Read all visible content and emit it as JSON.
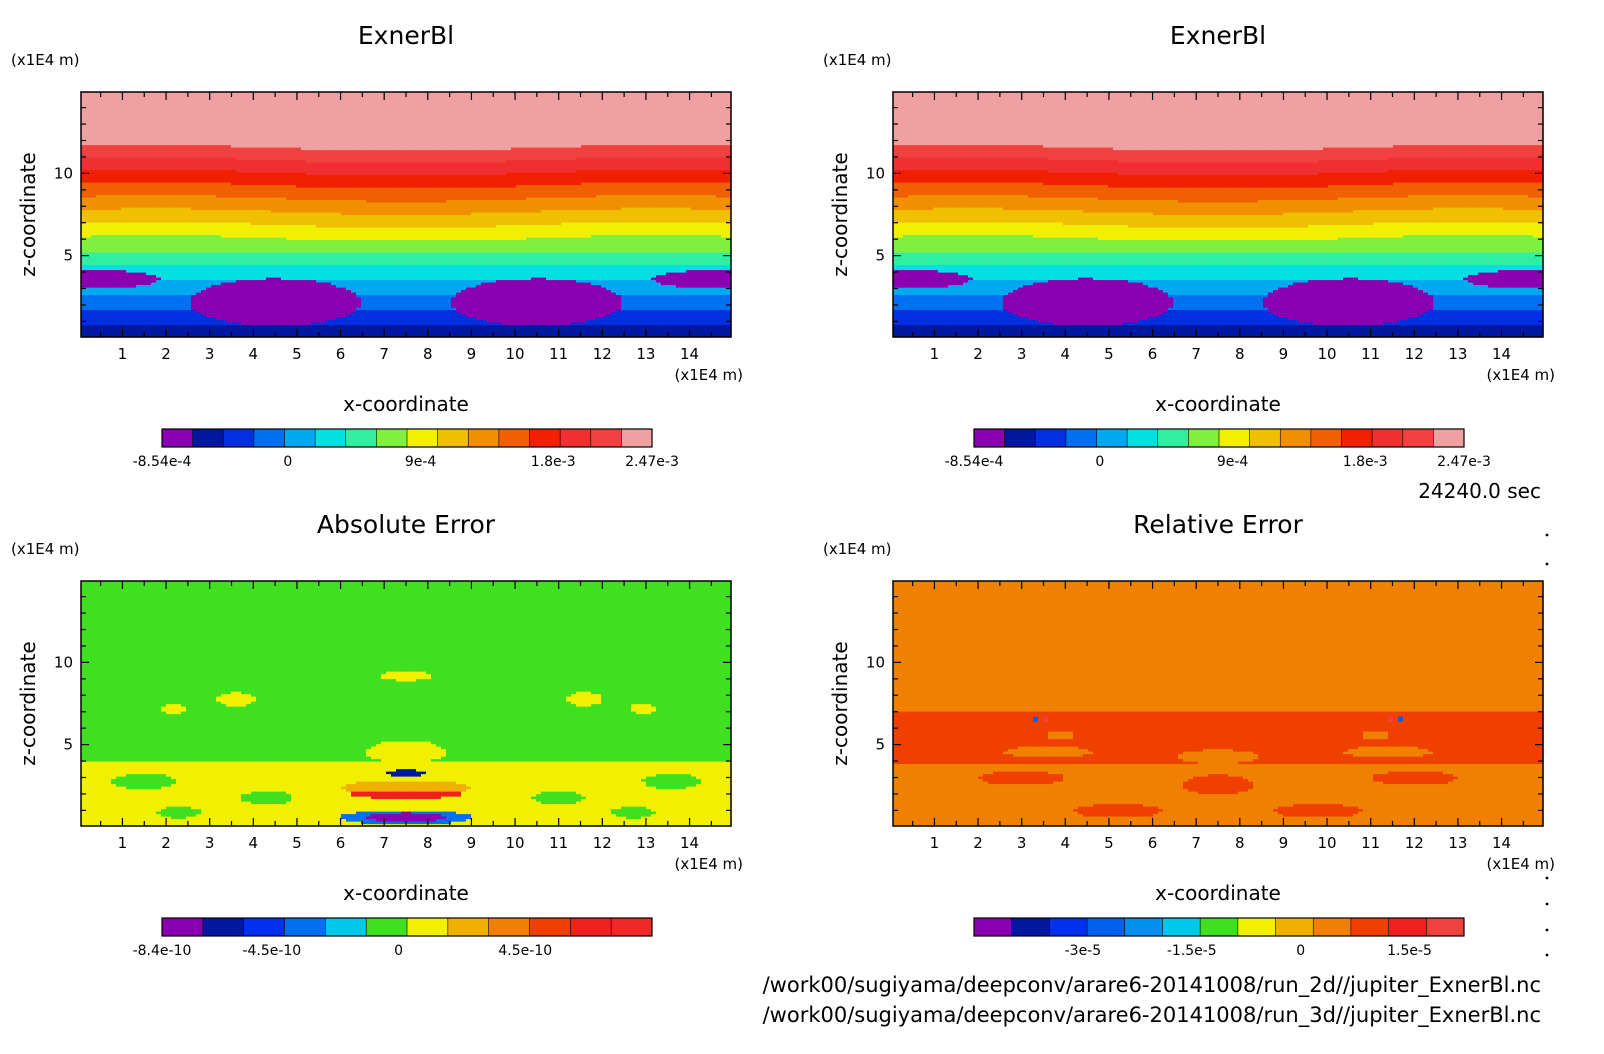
{
  "time_label": "24240.0 sec",
  "file_paths": [
    "/work00/sugiyama/deepconv/arare6-20141008/run_2d//jupiter_ExnerBl.nc",
    "/work00/sugiyama/deepconv/arare6-20141008/run_3d//jupiter_ExnerBl.nc"
  ],
  "chart_data": [
    {
      "type": "heatmap",
      "title": "ExnerBl",
      "xlabel": "x-coordinate",
      "ylabel": "z-coordinate",
      "x_unit": "(x1E4 m)",
      "y_unit": "(x1E4 m)",
      "x_ticks": [
        1,
        2,
        3,
        4,
        5,
        6,
        7,
        8,
        9,
        10,
        11,
        12,
        13,
        14
      ],
      "y_ticks": [
        5,
        10
      ],
      "xlim": [
        0.05,
        14.95
      ],
      "ylim": [
        0.05,
        14.95
      ],
      "colorbar": {
        "range": [
          -0.000854,
          0.00247
        ],
        "labels": [
          "-8.54e-4",
          "0",
          "9e-4",
          "1.8e-3",
          "2.47e-3"
        ],
        "label_values": [
          -0.000854,
          0,
          0.0009,
          0.0018,
          0.00247
        ],
        "colors": [
          "#8a00b0",
          "#0018a0",
          "#0030e0",
          "#0070f0",
          "#00a8f0",
          "#00e0e0",
          "#30f0a0",
          "#80f040",
          "#f0f000",
          "#f0c000",
          "#f09000",
          "#f06000",
          "#f02000",
          "#f03030",
          "#f04040",
          "#f0a0a0"
        ]
      },
      "field": "ExnerBl"
    },
    {
      "type": "heatmap",
      "title": "ExnerBl",
      "xlabel": "x-coordinate",
      "ylabel": "z-coordinate",
      "x_unit": "(x1E4 m)",
      "y_unit": "(x1E4 m)",
      "x_ticks": [
        1,
        2,
        3,
        4,
        5,
        6,
        7,
        8,
        9,
        10,
        11,
        12,
        13,
        14
      ],
      "y_ticks": [
        5,
        10
      ],
      "xlim": [
        0.05,
        14.95
      ],
      "ylim": [
        0.05,
        14.95
      ],
      "colorbar": {
        "range": [
          -0.000854,
          0.00247
        ],
        "labels": [
          "-8.54e-4",
          "0",
          "9e-4",
          "1.8e-3",
          "2.47e-3"
        ],
        "label_values": [
          -0.000854,
          0,
          0.0009,
          0.0018,
          0.00247
        ],
        "colors": [
          "#8a00b0",
          "#0018a0",
          "#0030e0",
          "#0070f0",
          "#00a8f0",
          "#00e0e0",
          "#30f0a0",
          "#80f040",
          "#f0f000",
          "#f0c000",
          "#f09000",
          "#f06000",
          "#f02000",
          "#f03030",
          "#f04040",
          "#f0a0a0"
        ]
      },
      "field": "ExnerBl"
    },
    {
      "type": "heatmap",
      "title": "Absolute Error",
      "xlabel": "x-coordinate",
      "ylabel": "z-coordinate",
      "x_unit": "(x1E4 m)",
      "y_unit": "(x1E4 m)",
      "x_ticks": [
        1,
        2,
        3,
        4,
        5,
        6,
        7,
        8,
        9,
        10,
        11,
        12,
        13,
        14
      ],
      "y_ticks": [
        5,
        10
      ],
      "xlim": [
        0.05,
        14.95
      ],
      "ylim": [
        0.05,
        14.95
      ],
      "colorbar": {
        "range": [
          -8.4e-10,
          9e-10
        ],
        "labels": [
          "-8.4e-10",
          "-4.5e-10",
          "0",
          "4.5e-10"
        ],
        "label_values": [
          -8.4e-10,
          -4.5e-10,
          0,
          4.5e-10
        ],
        "colors": [
          "#8a00b0",
          "#0018a0",
          "#0030f0",
          "#0070f0",
          "#00c8e8",
          "#40e020",
          "#f0f000",
          "#f0b000",
          "#f08000",
          "#f04000",
          "#f02020",
          "#f02828"
        ]
      },
      "field": "abs"
    },
    {
      "type": "heatmap",
      "title": "Relative Error",
      "xlabel": "x-coordinate",
      "ylabel": "z-coordinate",
      "x_unit": "(x1E4 m)",
      "y_unit": "(x1E4 m)",
      "x_ticks": [
        1,
        2,
        3,
        4,
        5,
        6,
        7,
        8,
        9,
        10,
        11,
        12,
        13,
        14
      ],
      "y_ticks": [
        5,
        10
      ],
      "xlim": [
        0.05,
        14.95
      ],
      "ylim": [
        0.05,
        14.95
      ],
      "colorbar": {
        "range": [
          -4.5e-05,
          2.25e-05
        ],
        "labels": [
          "-3e-5",
          "-1.5e-5",
          "0",
          "1.5e-5"
        ],
        "label_values": [
          -3e-05,
          -1.5e-05,
          0,
          1.5e-05
        ],
        "colors": [
          "#8a00b0",
          "#0018a0",
          "#0030f0",
          "#0060f0",
          "#0090f0",
          "#00c8e8",
          "#40e020",
          "#f0f000",
          "#f0b000",
          "#f08000",
          "#f04000",
          "#f02020",
          "#f04040"
        ]
      },
      "field": "rel"
    }
  ]
}
